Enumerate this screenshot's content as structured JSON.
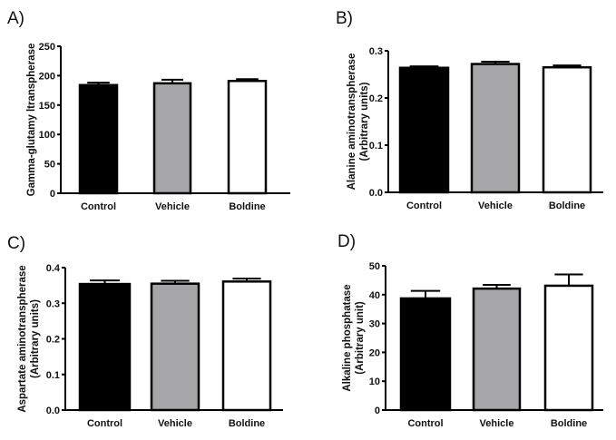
{
  "chart_data": [
    {
      "type": "bar",
      "panel_label": "A)",
      "title": "",
      "xlabel": "",
      "ylabel": [
        "Gamma-glutamy ltranspherase"
      ],
      "categories": [
        "Control",
        "Vehicle",
        "Boldine"
      ],
      "values": [
        184,
        187,
        191
      ],
      "errors": [
        4,
        6,
        3
      ],
      "colors": [
        "#000000",
        "#a6a6a8",
        "#ffffff"
      ],
      "ylim": [
        0,
        250
      ],
      "yticks": [
        0,
        50,
        100,
        150,
        200,
        250
      ],
      "ytick_labels": [
        "0",
        "50",
        "100",
        "150",
        "200",
        "250"
      ],
      "grid": false
    },
    {
      "type": "bar",
      "panel_label": "B)",
      "title": "",
      "xlabel": "",
      "ylabel": [
        "Alanine aminotranspherase",
        "(Arbitrary units)"
      ],
      "categories": [
        "Control",
        "Vehicle",
        "Boldine"
      ],
      "values": [
        0.264,
        0.272,
        0.265
      ],
      "errors": [
        0.003,
        0.005,
        0.004
      ],
      "colors": [
        "#000000",
        "#a6a6a8",
        "#ffffff"
      ],
      "ylim": [
        0,
        0.3
      ],
      "yticks": [
        0,
        0.1,
        0.2,
        0.3
      ],
      "ytick_labels": [
        "0.0",
        "0.1",
        "0.2",
        "0.3"
      ],
      "grid": false
    },
    {
      "type": "bar",
      "panel_label": "C)",
      "title": "",
      "xlabel": "",
      "ylabel": [
        "Aspartate aminotranspherase",
        "(Arbitrary units)"
      ],
      "categories": [
        "Control",
        "Vehicle",
        "Boldine"
      ],
      "values": [
        0.354,
        0.355,
        0.361
      ],
      "errors": [
        0.01,
        0.008,
        0.008
      ],
      "colors": [
        "#000000",
        "#a6a6a8",
        "#ffffff"
      ],
      "ylim": [
        0,
        0.4
      ],
      "yticks": [
        0,
        0.1,
        0.2,
        0.3,
        0.4
      ],
      "ytick_labels": [
        "0.0",
        "0.1",
        "0.2",
        "0.3",
        "0.4"
      ],
      "grid": false
    },
    {
      "type": "bar",
      "panel_label": "D)",
      "title": "",
      "xlabel": "",
      "ylabel": [
        "Alkaline phosphatase",
        "(Arbitrary unit)"
      ],
      "categories": [
        "Control",
        "Vehicle",
        "Boldine"
      ],
      "values": [
        38.7,
        42.1,
        43.1
      ],
      "errors": [
        2.6,
        1.3,
        3.9
      ],
      "colors": [
        "#000000",
        "#a6a6a8",
        "#ffffff"
      ],
      "ylim": [
        0,
        50
      ],
      "yticks": [
        0,
        10,
        20,
        30,
        40,
        50
      ],
      "ytick_labels": [
        "0",
        "10",
        "20",
        "30",
        "40",
        "50"
      ],
      "grid": false
    }
  ]
}
